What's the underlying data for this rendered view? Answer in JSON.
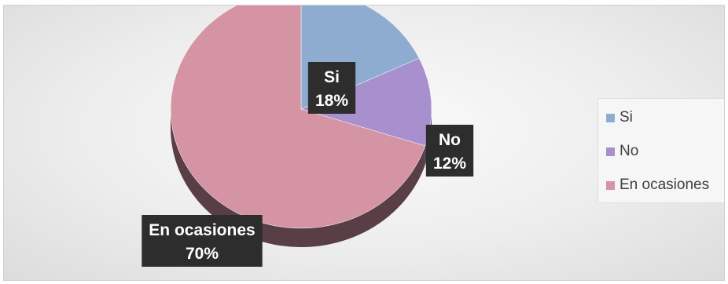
{
  "chart_data": {
    "type": "pie",
    "title": "",
    "style": "3d",
    "legend_position": "right",
    "slices": [
      {
        "label": "Si",
        "value": 18,
        "display": "18%",
        "color": "#8eaccf"
      },
      {
        "label": "No",
        "value": 12,
        "display": "12%",
        "color": "#a88fcd"
      },
      {
        "label": "En ocasiones",
        "value": 70,
        "display": "70%",
        "color": "#d494a4"
      }
    ]
  },
  "colors": {
    "label_box": "#2d2d2d",
    "label_text": "#ffffff"
  }
}
